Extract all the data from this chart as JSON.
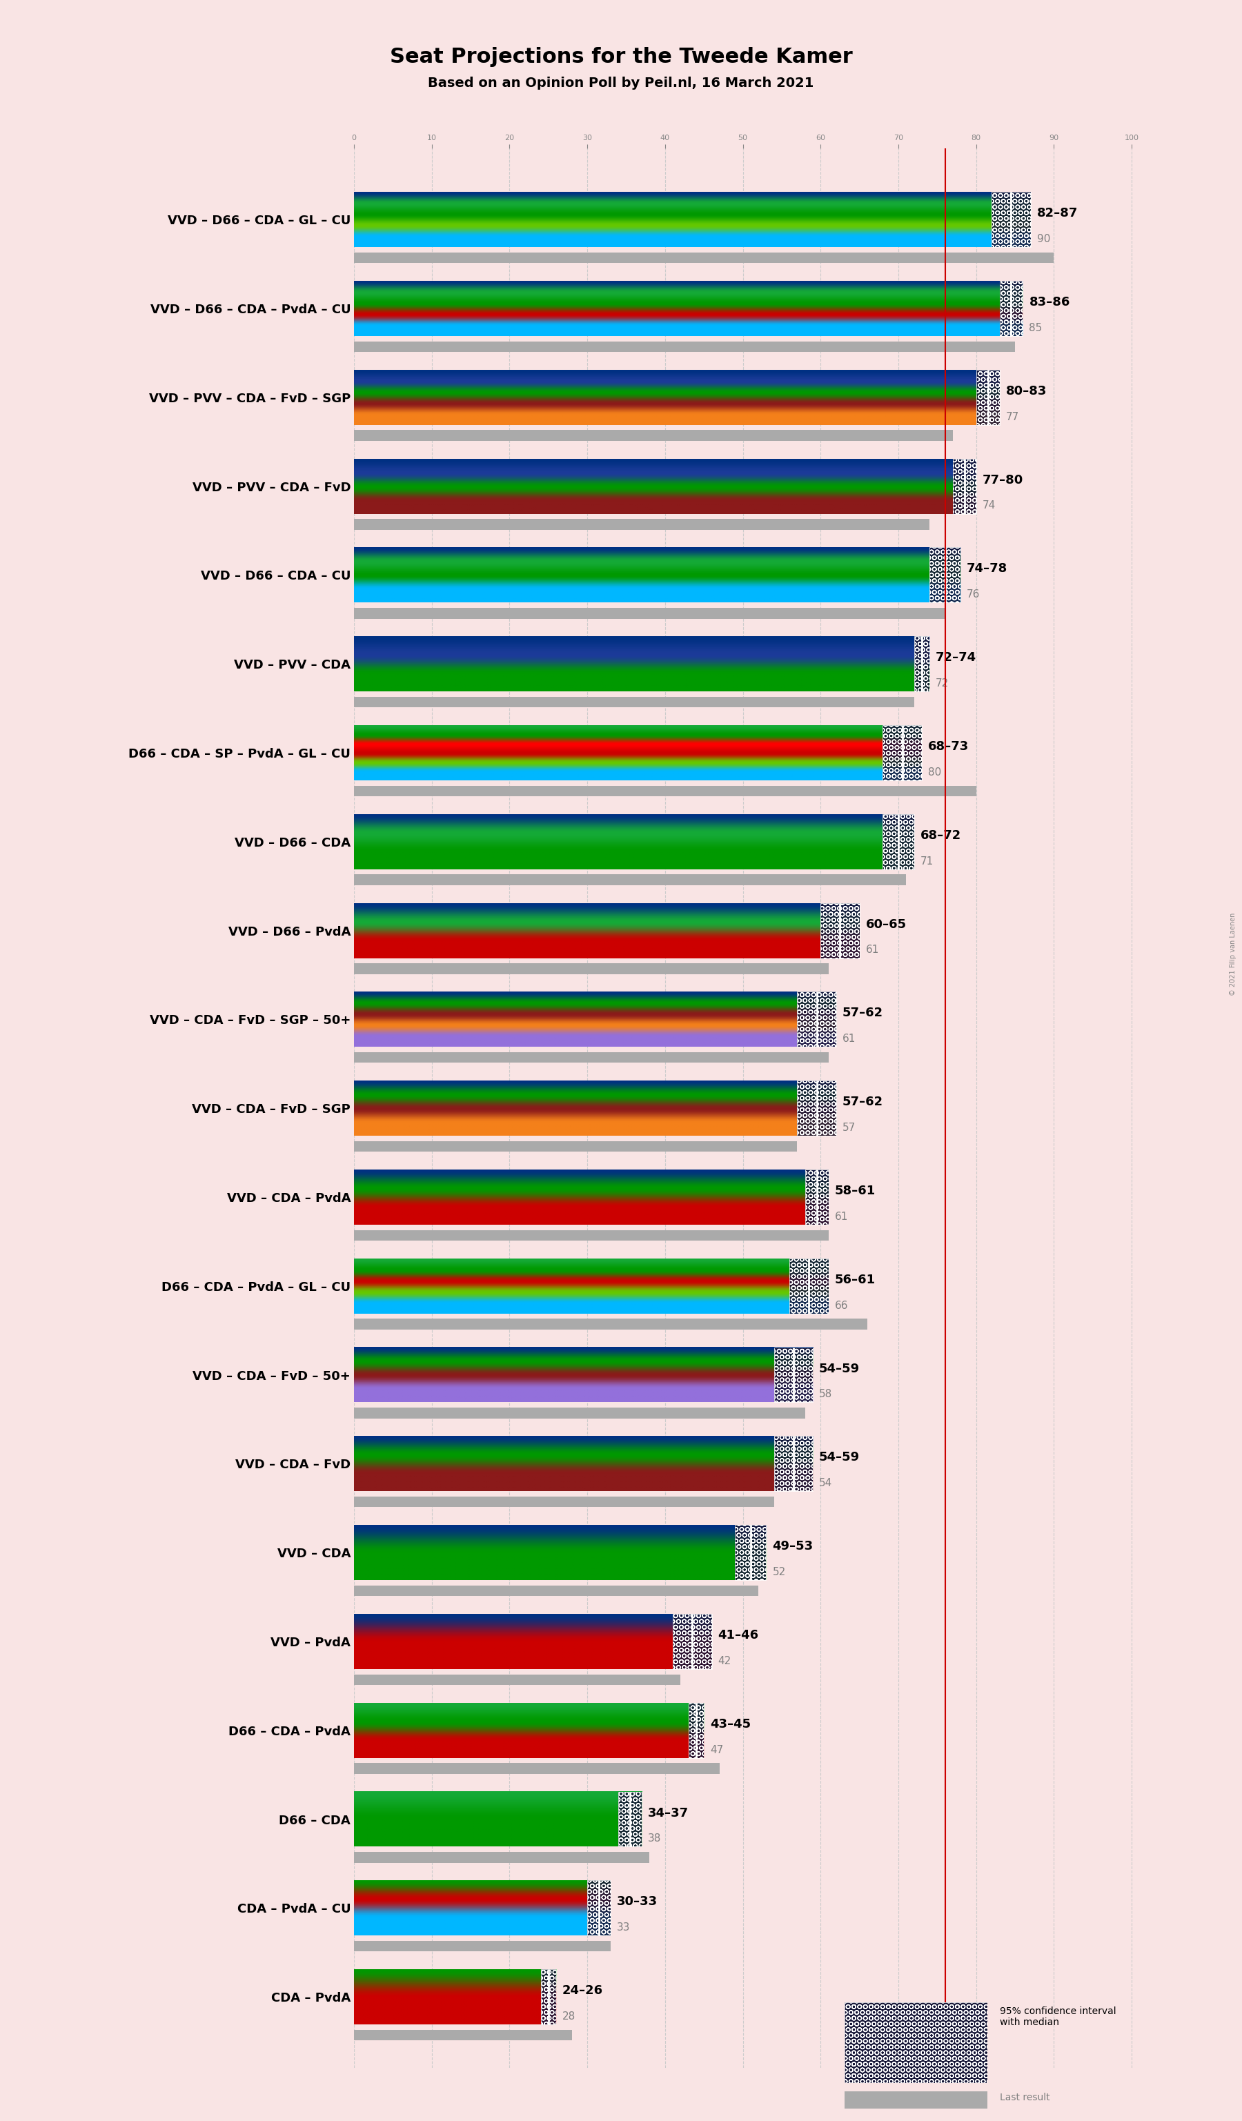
{
  "title": "Seat Projections for the Tweede Kamer",
  "subtitle": "Based on an Opinion Poll by Peil.nl, 16 March 2021",
  "background_color": "#F9E4E4",
  "copyright": "© 2021 Filip van Laenen",
  "coalitions": [
    {
      "name": "VVD – D66 – CDA – GL – CU",
      "low": 82,
      "high": 87,
      "last": 90,
      "underline": false,
      "parties": [
        "VVD",
        "D66",
        "CDA",
        "GL",
        "CU"
      ]
    },
    {
      "name": "VVD – D66 – CDA – PvdA – CU",
      "low": 83,
      "high": 86,
      "last": 85,
      "underline": false,
      "parties": [
        "VVD",
        "D66",
        "CDA",
        "PvdA",
        "CU"
      ]
    },
    {
      "name": "VVD – PVV – CDA – FvD – SGP",
      "low": 80,
      "high": 83,
      "last": 77,
      "underline": false,
      "parties": [
        "VVD",
        "PVV",
        "CDA",
        "FvD",
        "SGP"
      ]
    },
    {
      "name": "VVD – PVV – CDA – FvD",
      "low": 77,
      "high": 80,
      "last": 74,
      "underline": false,
      "parties": [
        "VVD",
        "PVV",
        "CDA",
        "FvD"
      ]
    },
    {
      "name": "VVD – D66 – CDA – CU",
      "low": 74,
      "high": 78,
      "last": 76,
      "underline": true,
      "parties": [
        "VVD",
        "D66",
        "CDA",
        "CU"
      ]
    },
    {
      "name": "VVD – PVV – CDA",
      "low": 72,
      "high": 74,
      "last": 72,
      "underline": false,
      "parties": [
        "VVD",
        "PVV",
        "CDA"
      ]
    },
    {
      "name": "D66 – CDA – SP – PvdA – GL – CU",
      "low": 68,
      "high": 73,
      "last": 80,
      "underline": false,
      "parties": [
        "D66",
        "CDA",
        "SP",
        "PvdA",
        "GL",
        "CU"
      ]
    },
    {
      "name": "VVD – D66 – CDA",
      "low": 68,
      "high": 72,
      "last": 71,
      "underline": false,
      "parties": [
        "VVD",
        "D66",
        "CDA"
      ]
    },
    {
      "name": "VVD – D66 – PvdA",
      "low": 60,
      "high": 65,
      "last": 61,
      "underline": false,
      "parties": [
        "VVD",
        "D66",
        "PvdA"
      ]
    },
    {
      "name": "VVD – CDA – FvD – SGP – 50+",
      "low": 57,
      "high": 62,
      "last": 61,
      "underline": false,
      "parties": [
        "VVD",
        "CDA",
        "FvD",
        "SGP",
        "50+"
      ]
    },
    {
      "name": "VVD – CDA – FvD – SGP",
      "low": 57,
      "high": 62,
      "last": 57,
      "underline": false,
      "parties": [
        "VVD",
        "CDA",
        "FvD",
        "SGP"
      ]
    },
    {
      "name": "VVD – CDA – PvdA",
      "low": 58,
      "high": 61,
      "last": 61,
      "underline": false,
      "parties": [
        "VVD",
        "CDA",
        "PvdA"
      ]
    },
    {
      "name": "D66 – CDA – PvdA – GL – CU",
      "low": 56,
      "high": 61,
      "last": 66,
      "underline": false,
      "parties": [
        "D66",
        "CDA",
        "PvdA",
        "GL",
        "CU"
      ]
    },
    {
      "name": "VVD – CDA – FvD – 50+",
      "low": 54,
      "high": 59,
      "last": 58,
      "underline": false,
      "parties": [
        "VVD",
        "CDA",
        "FvD",
        "50+"
      ]
    },
    {
      "name": "VVD – CDA – FvD",
      "low": 54,
      "high": 59,
      "last": 54,
      "underline": false,
      "parties": [
        "VVD",
        "CDA",
        "FvD"
      ]
    },
    {
      "name": "VVD – CDA",
      "low": 49,
      "high": 53,
      "last": 52,
      "underline": false,
      "parties": [
        "VVD",
        "CDA"
      ]
    },
    {
      "name": "VVD – PvdA",
      "low": 41,
      "high": 46,
      "last": 42,
      "underline": false,
      "parties": [
        "VVD",
        "PvdA"
      ]
    },
    {
      "name": "D66 – CDA – PvdA",
      "low": 43,
      "high": 45,
      "last": 47,
      "underline": false,
      "parties": [
        "D66",
        "CDA",
        "PvdA"
      ]
    },
    {
      "name": "D66 – CDA",
      "low": 34,
      "high": 37,
      "last": 38,
      "underline": false,
      "parties": [
        "D66",
        "CDA"
      ]
    },
    {
      "name": "CDA – PvdA – CU",
      "low": 30,
      "high": 33,
      "last": 33,
      "underline": false,
      "parties": [
        "CDA",
        "PvdA",
        "CU"
      ]
    },
    {
      "name": "CDA – PvdA",
      "low": 24,
      "high": 26,
      "last": 28,
      "underline": false,
      "parties": [
        "CDA",
        "PvdA"
      ]
    }
  ],
  "party_colors": {
    "VVD": "#003082",
    "D66": "#15AA37",
    "CDA": "#009900",
    "GL": "#65C800",
    "CU": "#00B7FF",
    "PvdA": "#CC0000",
    "PVV": "#1C3B99",
    "FvD": "#8B1A1A",
    "SGP": "#F4801A",
    "SP": "#FF0000",
    "50+": "#9370DB"
  },
  "majority_line": 76,
  "majority_line_color": "#CC0000",
  "grid_ticks": [
    0,
    10,
    20,
    30,
    40,
    50,
    60,
    70,
    80,
    90,
    100
  ],
  "xmax": 100,
  "bar_height": 0.62,
  "ci_hatch_color": "#111133",
  "last_bar_height": 0.12,
  "last_bar_color": "#AAAAAA",
  "label_fontsize": 13,
  "num_fontsize": 13,
  "last_fontsize": 11,
  "title_fontsize": 22,
  "subtitle_fontsize": 14,
  "legend_ci_text": "95% confidence interval\nwith median",
  "legend_last_text": "Last result"
}
